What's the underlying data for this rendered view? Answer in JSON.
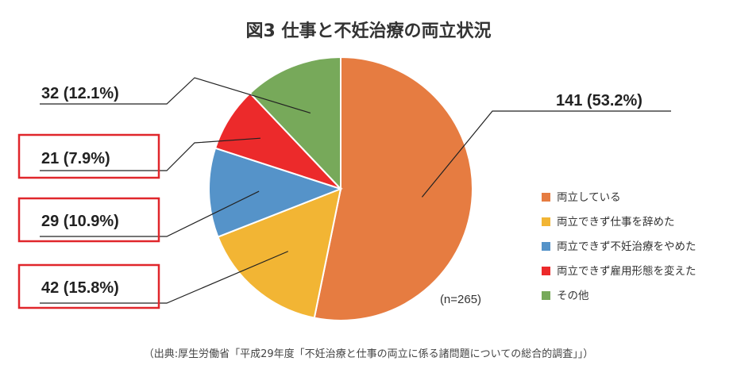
{
  "chart_data": {
    "type": "pie",
    "title": "図3 仕事と不妊治療の両立状況",
    "note": "(n=265)",
    "source": "（出典:厚生労働省「平成29年度「不妊治療と仕事の両立に係る諸問題についての総合的調査」」）",
    "legend_position": "right",
    "slices": [
      {
        "label": "両立している",
        "value": 141,
        "percent": 53.2,
        "display": "141 (53.2%)",
        "color": "#E67C41",
        "highlighted": false
      },
      {
        "label": "両立できず仕事を辞めた",
        "value": 42,
        "percent": 15.8,
        "display": "42 (15.8%)",
        "color": "#F2B534",
        "highlighted": true
      },
      {
        "label": "両立できず不妊治療をやめた",
        "value": 29,
        "percent": 10.9,
        "display": "29 (10.9%)",
        "color": "#5593C9",
        "highlighted": true
      },
      {
        "label": "両立できず雇用形態を変えた",
        "value": 21,
        "percent": 7.9,
        "display": "21 (7.9%)",
        "color": "#EC2A2B",
        "highlighted": true
      },
      {
        "label": "その他",
        "value": 32,
        "percent": 12.1,
        "display": "32 (12.1%)",
        "color": "#77A95A",
        "highlighted": false
      }
    ],
    "highlight_color": "#E0262B"
  }
}
